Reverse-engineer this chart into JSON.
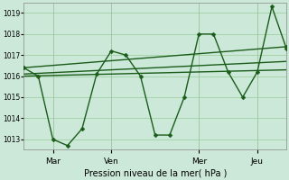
{
  "background_color": "#cce8d8",
  "grid_color": "#99cc99",
  "line_color": "#1a5c1a",
  "marker_color": "#1a5c1a",
  "ylim": [
    1012.5,
    1019.5
  ],
  "yticks": [
    1013,
    1014,
    1015,
    1016,
    1017,
    1018,
    1019
  ],
  "xlabel": "Pression niveau de la mer( hPa )",
  "xtick_labels": [
    "Mar",
    "Ven",
    "Mer",
    "Jeu"
  ],
  "xtick_positions": [
    24,
    72,
    144,
    192
  ],
  "xlim": [
    0,
    216
  ],
  "volatile_x": [
    0,
    12,
    24,
    36,
    48,
    60,
    72,
    84,
    96,
    108,
    120,
    132,
    144,
    156,
    168,
    180,
    192,
    204,
    216
  ],
  "volatile_y": [
    1016.4,
    1016.0,
    1013.0,
    1012.7,
    1013.5,
    1016.1,
    1017.2,
    1017.0,
    1016.0,
    1013.2,
    1013.2,
    1015.0,
    1018.0,
    1018.0,
    1016.2,
    1015.0,
    1016.2,
    1019.3,
    1017.3
  ],
  "trend1_x": [
    0,
    216
  ],
  "trend1_y": [
    1016.4,
    1017.4
  ],
  "trend2_x": [
    0,
    216
  ],
  "trend2_y": [
    1016.1,
    1016.7
  ],
  "trend3_x": [
    0,
    216
  ],
  "trend3_y": [
    1016.0,
    1016.3
  ]
}
